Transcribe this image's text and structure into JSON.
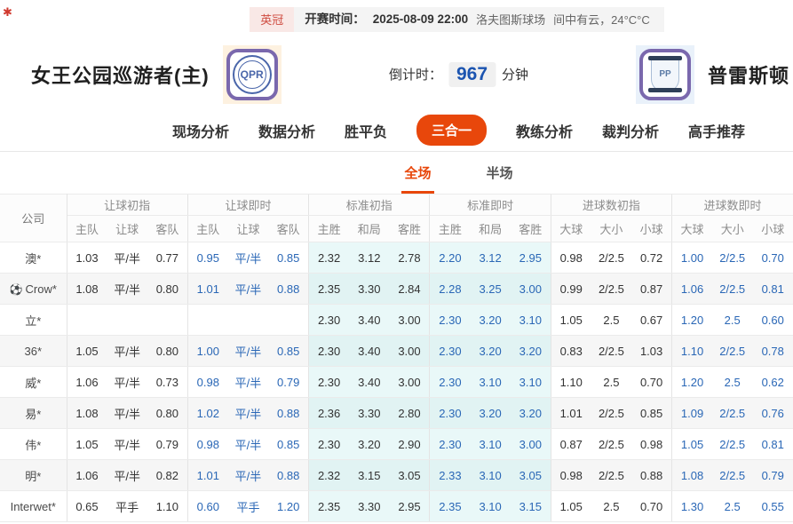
{
  "top_bar": {
    "league": "英冠",
    "kickoff_label": "开赛时间：",
    "kickoff_time": "2025-08-09 22:00",
    "venue": "洛夫图斯球场",
    "weather": "间中有云，24°C°C"
  },
  "header": {
    "home_team": "女王公园巡游者(主)",
    "away_team": "普雷斯顿",
    "home_logo_text": "QPR",
    "away_logo_text": "PP",
    "countdown_label": "倒计时：",
    "countdown_value": "967",
    "countdown_unit": "分钟"
  },
  "nav": {
    "tabs": [
      {
        "label": "现场分析",
        "active": false
      },
      {
        "label": "数据分析",
        "active": false
      },
      {
        "label": "胜平负",
        "active": false
      },
      {
        "label": "三合一",
        "active": true
      },
      {
        "label": "教练分析",
        "active": false
      },
      {
        "label": "裁判分析",
        "active": false
      },
      {
        "label": "高手推荐",
        "active": false
      }
    ]
  },
  "subtabs": [
    {
      "label": "全场",
      "active": true
    },
    {
      "label": "半场",
      "active": false
    }
  ],
  "table": {
    "company_header": "公司",
    "groups": [
      {
        "label": "让球初指",
        "cols": [
          "主队",
          "让球",
          "客队"
        ],
        "live": false,
        "tint": false
      },
      {
        "label": "让球即时",
        "cols": [
          "主队",
          "让球",
          "客队"
        ],
        "live": true,
        "tint": false
      },
      {
        "label": "标准初指",
        "cols": [
          "主胜",
          "和局",
          "客胜"
        ],
        "live": false,
        "tint": true
      },
      {
        "label": "标准即时",
        "cols": [
          "主胜",
          "和局",
          "客胜"
        ],
        "live": true,
        "tint": true
      },
      {
        "label": "进球数初指",
        "cols": [
          "大球",
          "大小",
          "小球"
        ],
        "live": false,
        "tint": false
      },
      {
        "label": "进球数即时",
        "cols": [
          "大球",
          "大小",
          "小球"
        ],
        "live": true,
        "tint": false
      }
    ],
    "rows": [
      {
        "company": "澳*",
        "icon": false,
        "values": [
          "1.03",
          "平/半",
          "0.77",
          "0.95",
          "平/半",
          "0.85",
          "2.32",
          "3.12",
          "2.78",
          "2.20",
          "3.12",
          "2.95",
          "0.98",
          "2/2.5",
          "0.72",
          "1.00",
          "2/2.5",
          "0.70"
        ]
      },
      {
        "company": "Crow*",
        "icon": true,
        "values": [
          "1.08",
          "平/半",
          "0.80",
          "1.01",
          "平/半",
          "0.88",
          "2.35",
          "3.30",
          "2.84",
          "2.28",
          "3.25",
          "3.00",
          "0.99",
          "2/2.5",
          "0.87",
          "1.06",
          "2/2.5",
          "0.81"
        ]
      },
      {
        "company": "立*",
        "icon": false,
        "values": [
          "",
          "",
          "",
          "",
          "",
          "",
          "2.30",
          "3.40",
          "3.00",
          "2.30",
          "3.20",
          "3.10",
          "1.05",
          "2.5",
          "0.67",
          "1.20",
          "2.5",
          "0.60"
        ]
      },
      {
        "company": "36*",
        "icon": false,
        "values": [
          "1.05",
          "平/半",
          "0.80",
          "1.00",
          "平/半",
          "0.85",
          "2.30",
          "3.40",
          "3.00",
          "2.30",
          "3.20",
          "3.20",
          "0.83",
          "2/2.5",
          "1.03",
          "1.10",
          "2/2.5",
          "0.78"
        ]
      },
      {
        "company": "威*",
        "icon": false,
        "values": [
          "1.06",
          "平/半",
          "0.73",
          "0.98",
          "平/半",
          "0.79",
          "2.30",
          "3.40",
          "3.00",
          "2.30",
          "3.10",
          "3.10",
          "1.10",
          "2.5",
          "0.70",
          "1.20",
          "2.5",
          "0.62"
        ]
      },
      {
        "company": "易*",
        "icon": false,
        "values": [
          "1.08",
          "平/半",
          "0.80",
          "1.02",
          "平/半",
          "0.88",
          "2.36",
          "3.30",
          "2.80",
          "2.30",
          "3.20",
          "3.20",
          "1.01",
          "2/2.5",
          "0.85",
          "1.09",
          "2/2.5",
          "0.76"
        ]
      },
      {
        "company": "伟*",
        "icon": false,
        "values": [
          "1.05",
          "平/半",
          "0.79",
          "0.98",
          "平/半",
          "0.85",
          "2.30",
          "3.20",
          "2.90",
          "2.30",
          "3.10",
          "3.00",
          "0.87",
          "2/2.5",
          "0.98",
          "1.05",
          "2/2.5",
          "0.81"
        ]
      },
      {
        "company": "明*",
        "icon": false,
        "values": [
          "1.06",
          "平/半",
          "0.82",
          "1.01",
          "平/半",
          "0.88",
          "2.32",
          "3.15",
          "3.05",
          "2.33",
          "3.10",
          "3.05",
          "0.98",
          "2/2.5",
          "0.88",
          "1.08",
          "2/2.5",
          "0.79"
        ]
      },
      {
        "company": "Interwet*",
        "icon": false,
        "values": [
          "0.65",
          "平手",
          "1.10",
          "0.60",
          "平手",
          "1.20",
          "2.35",
          "3.30",
          "2.95",
          "2.35",
          "3.10",
          "3.15",
          "1.05",
          "2.5",
          "0.70",
          "1.30",
          "2.5",
          "0.55"
        ]
      }
    ]
  },
  "icons": {
    "site_mark": "✱",
    "ball": "⚽"
  },
  "colors": {
    "accent_orange": "#e8470b",
    "live_blue": "#2a67b6",
    "tint_cyan": "#e9f8f8",
    "countdown_blue": "#1b54b0",
    "league_red": "#cf4b40"
  }
}
